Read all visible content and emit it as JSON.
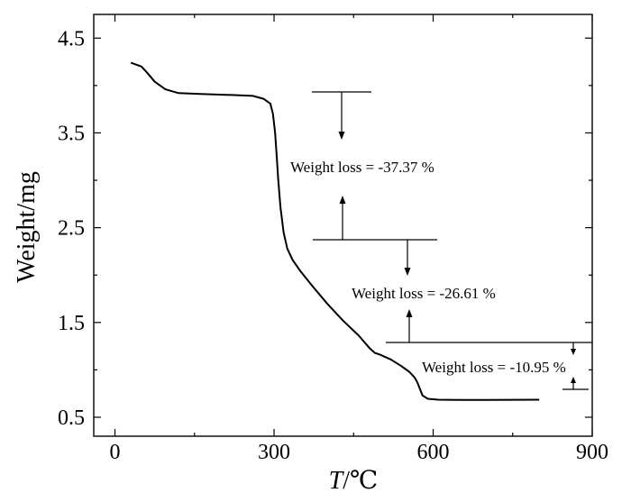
{
  "chart_data": {
    "type": "line",
    "title": "",
    "xlabel_italic": "T",
    "xlabel_unit": "/℃",
    "ylabel": "Weight/mg",
    "xlim": [
      -40,
      900
    ],
    "ylim": [
      0.3,
      4.75
    ],
    "xticks": [
      0,
      300,
      600,
      900
    ],
    "xtick_labels": [
      "0",
      "300",
      "600",
      "900"
    ],
    "yticks": [
      0.5,
      1.5,
      2.5,
      3.5,
      4.5
    ],
    "ytick_labels": [
      "0.5",
      "1.5",
      "2.5",
      "3.5",
      "4.5"
    ],
    "series": [
      {
        "x": [
          30,
          50,
          60,
          75,
          95,
          120,
          160,
          220,
          260,
          280,
          293,
          298,
          302,
          305,
          308,
          312,
          318,
          325,
          335,
          350,
          370,
          400,
          430,
          460,
          480,
          490,
          500,
          520,
          540,
          555,
          565,
          570,
          575,
          580,
          590,
          610,
          650,
          700,
          750,
          800
        ],
        "y": [
          4.24,
          4.2,
          4.14,
          4.04,
          3.96,
          3.92,
          3.91,
          3.9,
          3.89,
          3.86,
          3.81,
          3.7,
          3.5,
          3.25,
          3.0,
          2.72,
          2.45,
          2.28,
          2.16,
          2.04,
          1.9,
          1.7,
          1.52,
          1.36,
          1.23,
          1.18,
          1.16,
          1.11,
          1.04,
          0.98,
          0.92,
          0.87,
          0.8,
          0.73,
          0.695,
          0.685,
          0.683,
          0.683,
          0.684,
          0.685
        ]
      }
    ],
    "annotations": [
      {
        "text": "Weight loss = -37.37 %"
      },
      {
        "text": "Weight loss = -26.61 %"
      },
      {
        "text": "Weight loss = -10.95 %"
      }
    ],
    "grid": false,
    "legend": "none"
  }
}
